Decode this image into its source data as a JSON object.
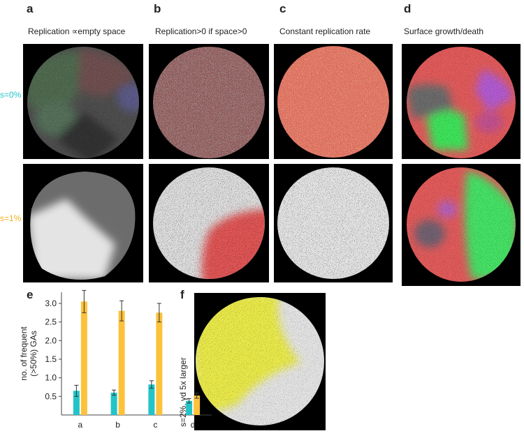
{
  "figure": {
    "panels": [
      {
        "letter": "a",
        "subtitle": "Replication ∝empty space"
      },
      {
        "letter": "b",
        "subtitle": "Replication>0 if space>0"
      },
      {
        "letter": "c",
        "subtitle": "Constant replication rate"
      },
      {
        "letter": "d",
        "subtitle": "Surface growth/death"
      },
      {
        "letter": "e"
      },
      {
        "letter": "f",
        "label": "s=2%, γd 5x larger"
      }
    ],
    "row_labels": [
      "s=0%",
      "s=1%"
    ]
  },
  "chart_data": {
    "type": "bar",
    "y_label": [
      "no. of frequent",
      "(>50%) GAs"
    ],
    "categories": [
      "a",
      "b",
      "c",
      "d"
    ],
    "series": [
      {
        "color": "#22c4c8",
        "values": [
          0.65,
          0.6,
          0.82,
          0.38
        ],
        "errors": [
          0.15,
          0.07,
          0.1,
          0.06
        ]
      },
      {
        "color": "#fcc23c",
        "values": [
          3.05,
          2.8,
          2.75,
          0.52
        ],
        "errors": [
          0.3,
          0.27,
          0.25,
          0.07
        ]
      }
    ],
    "ylim": [
      0,
      3.3
    ],
    "yticks": [
      0.5,
      {
        "value": 1,
        "label": "1.0"
      },
      1.5,
      {
        "value": 2,
        "label": "2.0"
      },
      2.5,
      {
        "value": 3,
        "label": "3.0"
      }
    ]
  }
}
